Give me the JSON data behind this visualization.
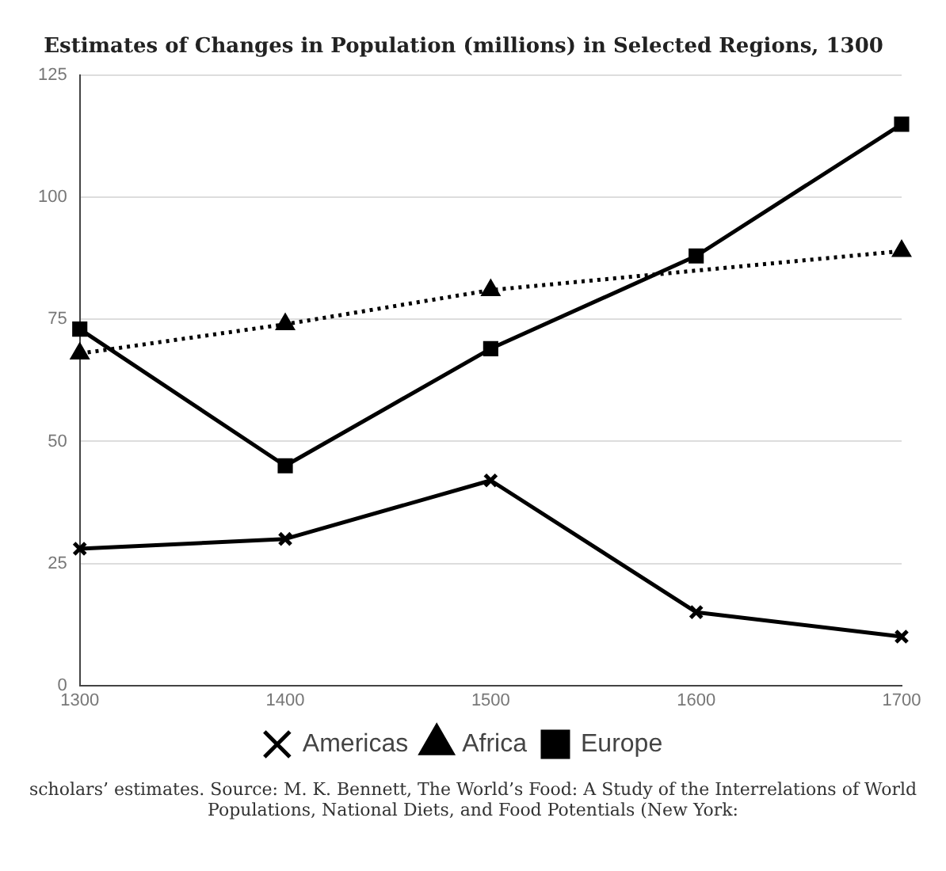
{
  "chart_data": {
    "type": "line",
    "title": "Estimates of Changes in Population (millions) in Selected Regions, 1300",
    "categories": [
      "1300",
      "1400",
      "1500",
      "1600",
      "1700"
    ],
    "series": [
      {
        "name": "Americas",
        "color": "#000000",
        "values": [
          28,
          30,
          42,
          15,
          10
        ],
        "marker": "cross",
        "line_style": "solid"
      },
      {
        "name": "Africa",
        "color": "#000000",
        "values": [
          68,
          74,
          81,
          null,
          89
        ],
        "marker": "triangle",
        "line_style": "dotted"
      },
      {
        "name": "Europe",
        "color": "#000000",
        "values": [
          73,
          45,
          69,
          88,
          115
        ],
        "marker": "square",
        "line_style": "solid"
      }
    ],
    "ylim": [
      0,
      125
    ],
    "yticks": [
      0,
      25,
      50,
      75,
      100,
      125
    ],
    "grid": "y",
    "legend": "bottom",
    "annotations": [
      "scholars’ estimates. Source: M. K. Bennett, The World’s Food: A Study of the Interrelations of World Populations, National Diets, and Food Potentials (New York:"
    ]
  }
}
